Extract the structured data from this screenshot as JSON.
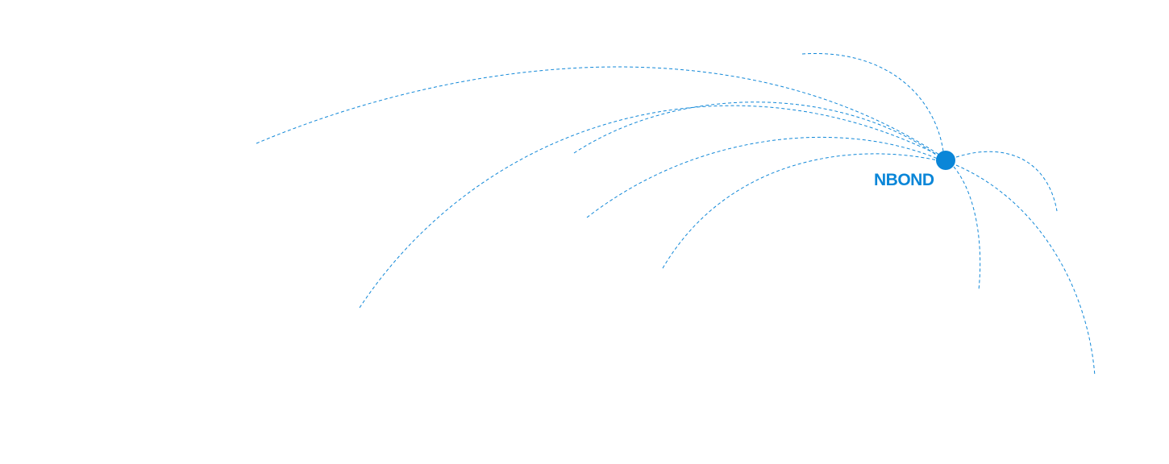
{
  "hub": {
    "label": "NBOND",
    "icon": "hub-dot-icon"
  },
  "colors": {
    "accent": "#0a86d8",
    "arc": "#1188d8",
    "background": "#ffffff"
  }
}
